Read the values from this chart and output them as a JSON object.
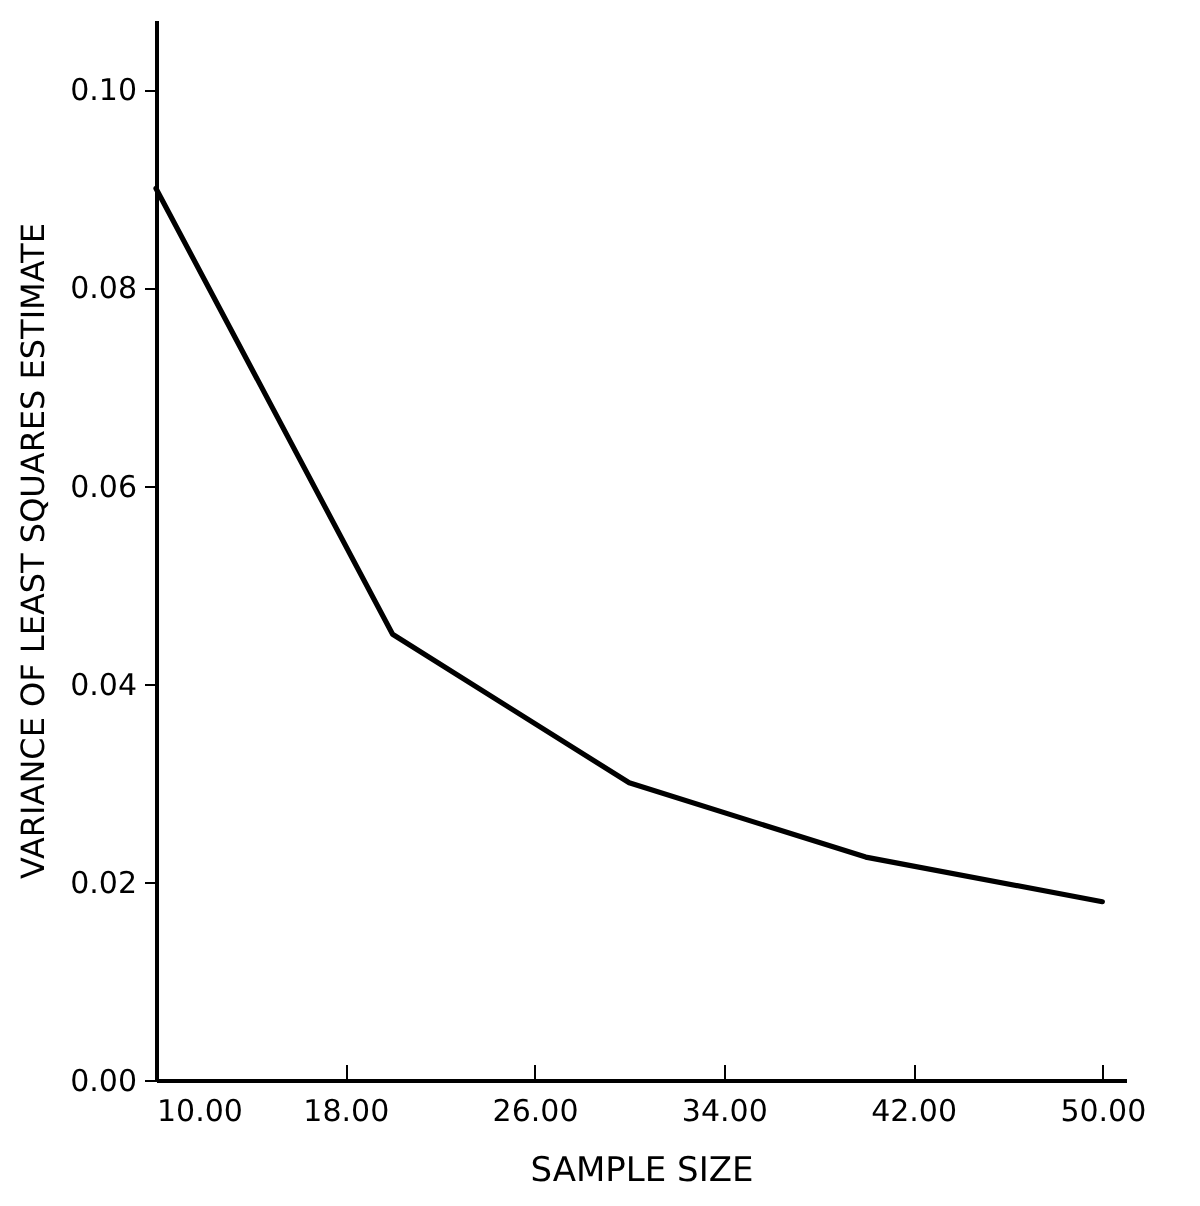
{
  "chart_data": {
    "type": "line",
    "xlabel": "SAMPLE SIZE",
    "ylabel": "VARIANCE OF LEAST SQUARES ESTIMATE",
    "x": [
      10,
      20,
      30,
      40,
      50
    ],
    "series": [
      {
        "color": "#000000",
        "values": [
          0.09,
          0.045,
          0.03,
          0.0225,
          0.018
        ]
      }
    ],
    "xlim": [
      10,
      51
    ],
    "xticks": [
      {
        "value": 10,
        "label": "10.00"
      },
      {
        "value": 18,
        "label": "18.00"
      },
      {
        "value": 26,
        "label": "26.00"
      },
      {
        "value": 34,
        "label": "34.00"
      },
      {
        "value": 42,
        "label": "42.00"
      },
      {
        "value": 50,
        "label": "50.00"
      }
    ],
    "ylim": [
      0,
      0.107
    ],
    "yticks": [
      {
        "value": 0,
        "label": "0.00"
      },
      {
        "value": 0.02,
        "label": "0.02"
      },
      {
        "value": 0.04,
        "label": "0.04"
      },
      {
        "value": 0.06,
        "label": "0.06"
      },
      {
        "value": 0.08,
        "label": "0.08"
      },
      {
        "value": 0.1,
        "label": "0.10"
      }
    ],
    "grid": false,
    "marker": "none",
    "line_style": "solid"
  }
}
